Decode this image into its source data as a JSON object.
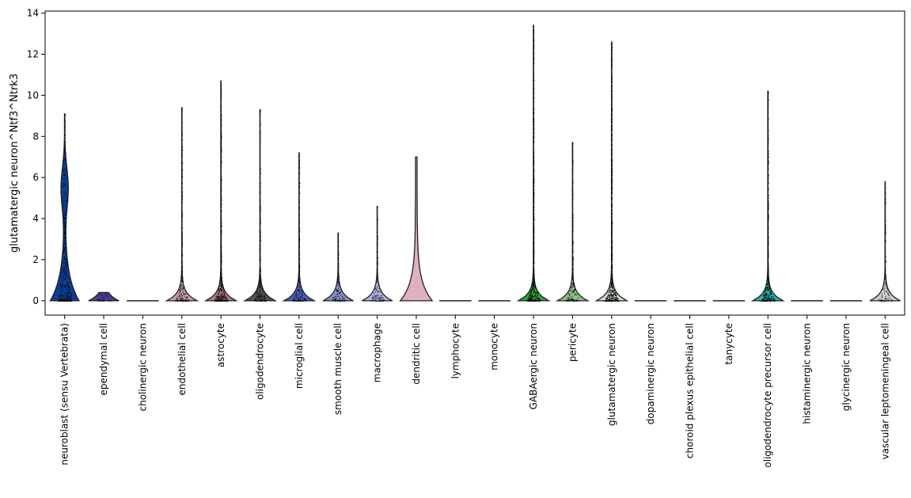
{
  "chart_data": {
    "type": "violin",
    "title": "",
    "xlabel": "",
    "ylabel": "glutamatergic neuron^Ntf3^Ntrk3",
    "ylim": [
      -0.7,
      14.1
    ],
    "yticks": [
      0,
      2,
      4,
      6,
      8,
      10,
      12,
      14
    ],
    "grid": false,
    "legend": "none",
    "categories": [
      "neuroblast (sensu Vertebrata)",
      "ependymal cell",
      "cholinergic neuron",
      "endothelial cell",
      "astrocyte",
      "oligodendrocyte",
      "microglial cell",
      "smooth muscle cell",
      "macrophage",
      "dendritic cell",
      "lymphocyte",
      "monocyte",
      "GABAergic neuron",
      "pericyte",
      "glutamatergic neuron",
      "dopaminergic neuron",
      "choroid plexus epithelial cell",
      "tanycyte",
      "oligodendrocyte precursor cell",
      "histaminergic neuron",
      "glycinergic neuron",
      "vascular leptomeningeal cell"
    ],
    "colors": [
      "#0d3d91",
      "#4a3a8e",
      "#2a2a2a",
      "#c8a0a8",
      "#b87a82",
      "#555555",
      "#4a5cb4",
      "#8890c8",
      "#b0b4e0",
      "#e0b0bc",
      "#bbbbbb",
      "#bbbbbb",
      "#2e9d3c",
      "#8cc08c",
      "#c8dcc8",
      "#cccccc",
      "#cccccc",
      "#cccccc",
      "#26b0a8",
      "#cccccc",
      "#cccccc",
      "#cccccc"
    ],
    "max_values": [
      9.1,
      0.4,
      0.05,
      9.4,
      10.7,
      9.3,
      7.2,
      3.3,
      4.6,
      7.0,
      0.05,
      0.05,
      13.4,
      7.7,
      12.6,
      0.05,
      0.05,
      0.05,
      10.2,
      0.05,
      0.05,
      5.8
    ],
    "point_density": [
      0.7,
      0.05,
      0,
      0.4,
      0.9,
      0.4,
      0.3,
      0.2,
      0.2,
      0,
      0,
      0,
      0.9,
      0.3,
      1.0,
      0,
      0,
      0,
      0.8,
      0,
      0,
      0.2
    ]
  }
}
